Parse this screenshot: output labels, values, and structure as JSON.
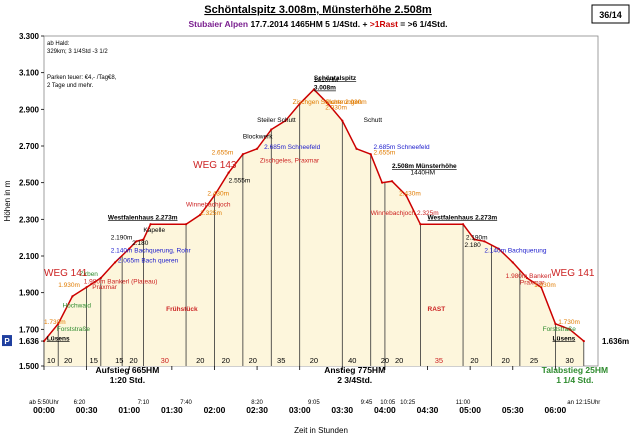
{
  "header": {
    "title": "Schöntalspitz 3.008m, Münsterhöhe 2.508m",
    "subtitle_region": "Stubaier Alpen",
    "subtitle_date": "17.7.2014",
    "subtitle_hm": "1465HM",
    "subtitle_time": "5 1/4Std. +",
    "subtitle_rast": ">1Rast",
    "subtitle_total": "= >6 1/4Std.",
    "page_badge": "36/14"
  },
  "colors": {
    "fill": "#fdf6dc",
    "line": "#cc0000",
    "green": "#2e8b2e",
    "orange": "#e07b00",
    "blue": "#1a1acc",
    "purple": "#7a1f8f",
    "red_text": "#cc2222"
  },
  "notes": {
    "line1": "ab Hald:",
    "line2": "329km; 3 1/4Std -3 1/2",
    "line3": "Parken teuer: €4,- /Tag€8,",
    "line4": "2 Tage und mehr."
  },
  "p_marker": "P",
  "chart_data": {
    "type": "area",
    "title": "Schöntalspitz 3.008m, Münsterhöhe 2.508m",
    "xlabel": "Zeit in Stunden",
    "ylabel": "Höhen in m",
    "ylim": [
      1500,
      3300
    ],
    "xlim": [
      0,
      390
    ],
    "y_ticks": [
      {
        "v": 1500,
        "label": "1.500"
      },
      {
        "v": 1636,
        "label": "1.636"
      },
      {
        "v": 1700,
        "label": "1.700"
      },
      {
        "v": 1900,
        "label": "1.900"
      },
      {
        "v": 2100,
        "label": "2.100"
      },
      {
        "v": 2300,
        "label": "2.300"
      },
      {
        "v": 2500,
        "label": "2.500"
      },
      {
        "v": 2700,
        "label": "2.700"
      },
      {
        "v": 2900,
        "label": "2.900"
      },
      {
        "v": 3100,
        "label": "3.100"
      },
      {
        "v": 3300,
        "label": "3.300"
      }
    ],
    "x_ticks": [
      {
        "t": 0,
        "label": "00:00"
      },
      {
        "t": 30,
        "label": "00:30"
      },
      {
        "t": 60,
        "label": "01:00"
      },
      {
        "t": 90,
        "label": "01:30"
      },
      {
        "t": 120,
        "label": "02:00"
      },
      {
        "t": 150,
        "label": "02:30"
      },
      {
        "t": 180,
        "label": "03:00"
      },
      {
        "t": 210,
        "label": "03:30"
      },
      {
        "t": 240,
        "label": "04:00"
      },
      {
        "t": 270,
        "label": "04:30"
      },
      {
        "t": 300,
        "label": "05:00"
      },
      {
        "t": 330,
        "label": "05:30"
      },
      {
        "t": 360,
        "label": "06:00"
      }
    ],
    "clock_labels": [
      {
        "t": 0,
        "label": "ab 5:50Uhr"
      },
      {
        "t": 25,
        "label": "6:20"
      },
      {
        "t": 70,
        "label": "7:10"
      },
      {
        "t": 100,
        "label": "7:40"
      },
      {
        "t": 150,
        "label": "8:20"
      },
      {
        "t": 190,
        "label": "9:05"
      },
      {
        "t": 227,
        "label": "9:45"
      },
      {
        "t": 242,
        "label": "10:05"
      },
      {
        "t": 256,
        "label": "10:25"
      },
      {
        "t": 295,
        "label": "11:00"
      },
      {
        "t": 380,
        "label": "an 12:15Uhr"
      }
    ],
    "segment_minutes": [
      {
        "t": 5,
        "label": "10"
      },
      {
        "t": 17,
        "label": "20"
      },
      {
        "t": 35,
        "label": "15"
      },
      {
        "t": 53,
        "label": "15"
      },
      {
        "t": 63,
        "label": "20"
      },
      {
        "t": 85,
        "label": "30"
      },
      {
        "t": 110,
        "label": "20"
      },
      {
        "t": 128,
        "label": "20"
      },
      {
        "t": 147,
        "label": "20"
      },
      {
        "t": 167,
        "label": "35"
      },
      {
        "t": 190,
        "label": "20"
      },
      {
        "t": 217,
        "label": "40"
      },
      {
        "t": 240,
        "label": "20"
      },
      {
        "t": 250,
        "label": "20"
      },
      {
        "t": 278,
        "label": "35"
      },
      {
        "t": 303,
        "label": "20"
      },
      {
        "t": 325,
        "label": "20"
      },
      {
        "t": 345,
        "label": "25"
      },
      {
        "t": 370,
        "label": "30"
      }
    ],
    "dividers": [
      0,
      10,
      30,
      40,
      55,
      70,
      100,
      120,
      140,
      160,
      180,
      210,
      230,
      240,
      265,
      295,
      315,
      335,
      360,
      380
    ],
    "series": [
      {
        "name": "Höhenprofil",
        "points": [
          [
            0,
            1636
          ],
          [
            10,
            1730
          ],
          [
            20,
            1880
          ],
          [
            30,
            1930
          ],
          [
            40,
            1980
          ],
          [
            50,
            2065
          ],
          [
            60,
            2140
          ],
          [
            65,
            2180
          ],
          [
            70,
            2190
          ],
          [
            75,
            2273
          ],
          [
            100,
            2273
          ],
          [
            110,
            2325
          ],
          [
            120,
            2430
          ],
          [
            130,
            2555
          ],
          [
            140,
            2655
          ],
          [
            150,
            2685
          ],
          [
            160,
            2790
          ],
          [
            170,
            2838
          ],
          [
            180,
            2930
          ],
          [
            190,
            3008
          ],
          [
            200,
            2930
          ],
          [
            210,
            2838
          ],
          [
            220,
            2685
          ],
          [
            230,
            2655
          ],
          [
            238,
            2500
          ],
          [
            245,
            2508
          ],
          [
            255,
            2430
          ],
          [
            265,
            2273
          ],
          [
            295,
            2273
          ],
          [
            303,
            2190
          ],
          [
            310,
            2180
          ],
          [
            320,
            2140
          ],
          [
            330,
            2065
          ],
          [
            340,
            1980
          ],
          [
            350,
            1930
          ],
          [
            360,
            1730
          ],
          [
            370,
            1700
          ],
          [
            380,
            1636
          ]
        ]
      }
    ],
    "annotations": [
      {
        "t": 190,
        "v": 3060,
        "text": "Schöntalspitz",
        "color": "#000000",
        "bold": true,
        "underline": true
      },
      {
        "t": 190,
        "v": 3008,
        "text": "3.008m",
        "color": "#000000",
        "bold": true,
        "underline": true
      },
      {
        "t": 190,
        "v": 3048,
        "text": "1410HM",
        "color": "#000000"
      },
      {
        "t": 175,
        "v": 2930,
        "text": "Zischgen Scharte 2.930m",
        "color": "#e07b00"
      },
      {
        "t": 198,
        "v": 2930,
        "text": "Sicherungen",
        "color": "#e07b00"
      },
      {
        "t": 198,
        "v": 2900,
        "text": "2.930m",
        "color": "#e07b00"
      },
      {
        "t": 150,
        "v": 2830,
        "text": "Steiler Schutt",
        "color": "#000000"
      },
      {
        "t": 225,
        "v": 2830,
        "text": "Schutt",
        "color": "#000000"
      },
      {
        "t": 140,
        "v": 2740,
        "text": "Blockwerk",
        "color": "#000000"
      },
      {
        "t": 118,
        "v": 2655,
        "text": "2.655m",
        "color": "#e07b00"
      },
      {
        "t": 155,
        "v": 2685,
        "text": "2.685m Schneefeld",
        "color": "#1a1acc"
      },
      {
        "t": 152,
        "v": 2610,
        "text": "Zischgeles, Praxmar",
        "color": "#cc2222"
      },
      {
        "t": 232,
        "v": 2685,
        "text": "2.685m Schneefeld",
        "color": "#1a1acc"
      },
      {
        "t": 232,
        "v": 2655,
        "text": "2.655m",
        "color": "#e07b00"
      },
      {
        "t": 245,
        "v": 2580,
        "text": "2.508m Münsterhöhe",
        "color": "#000000",
        "bold": true,
        "underline": true
      },
      {
        "t": 258,
        "v": 2545,
        "text": "1440HM",
        "color": "#000000"
      },
      {
        "t": 250,
        "v": 2430,
        "text": "2.430m",
        "color": "#e07b00"
      },
      {
        "t": 115,
        "v": 2430,
        "text": "2.430m",
        "color": "#e07b00"
      },
      {
        "t": 130,
        "v": 2500,
        "text": "2.555m",
        "color": "#000000"
      },
      {
        "t": 105,
        "v": 2580,
        "text": "WEG 143",
        "color": "#cc2222",
        "size": 10
      },
      {
        "t": 110,
        "v": 2325,
        "text": "2.325m",
        "color": "#e07b00"
      },
      {
        "t": 100,
        "v": 2370,
        "text": "Winnebachjoch",
        "color": "#cc2222"
      },
      {
        "t": 230,
        "v": 2325,
        "text": "Winnebachjoch 2.325m",
        "color": "#cc2222"
      },
      {
        "t": 45,
        "v": 2300,
        "text": "Westfalenhaus 2.273m",
        "color": "#000000",
        "bold": true,
        "underline": true
      },
      {
        "t": 270,
        "v": 2300,
        "text": "Westfalenhaus 2.273m",
        "color": "#000000",
        "bold": true,
        "underline": true
      },
      {
        "t": 70,
        "v": 2230,
        "text": "Kapelle",
        "color": "#000000"
      },
      {
        "t": 47,
        "v": 2190,
        "text": "2.190m",
        "color": "#000000"
      },
      {
        "t": 62,
        "v": 2160,
        "text": "2.180",
        "color": "#000000"
      },
      {
        "t": 47,
        "v": 2120,
        "text": "2.140m Bachquerung, Rohr",
        "color": "#1a1acc"
      },
      {
        "t": 297,
        "v": 2190,
        "text": "2.190m",
        "color": "#000000"
      },
      {
        "t": 296,
        "v": 2150,
        "text": "2.180",
        "color": "#000000"
      },
      {
        "t": 310,
        "v": 2120,
        "text": "2.140m Bachquerung",
        "color": "#1a1acc"
      },
      {
        "t": 52,
        "v": 2065,
        "text": "2.065m Bach queren",
        "color": "#1a1acc"
      },
      {
        "t": 25,
        "v": 1990,
        "text": "Zirben",
        "color": "#2e8b2e"
      },
      {
        "t": 28,
        "v": 1950,
        "text": "1.980m Bankerl (Plateau)",
        "color": "#cc2222"
      },
      {
        "t": 34,
        "v": 1920,
        "text": "Praxmar",
        "color": "#cc2222"
      },
      {
        "t": 10,
        "v": 1930,
        "text": "1.930m",
        "color": "#e07b00"
      },
      {
        "t": 0,
        "v": 1990,
        "text": "WEG 141",
        "color": "#cc2222",
        "size": 10
      },
      {
        "t": 13,
        "v": 1820,
        "text": "Hochwald",
        "color": "#2e8b2e"
      },
      {
        "t": 0,
        "v": 1730,
        "text": "1.730m",
        "color": "#e07b00"
      },
      {
        "t": 9,
        "v": 1690,
        "text": "Forststraße",
        "color": "#2e8b2e"
      },
      {
        "t": 2,
        "v": 1640,
        "text": "Lüsens",
        "color": "#000000",
        "bold": true,
        "underline": true
      },
      {
        "t": 325,
        "v": 1980,
        "text": "1.980m Bankerl",
        "color": "#cc2222"
      },
      {
        "t": 335,
        "v": 1945,
        "text": "Praxmar",
        "color": "#cc2222"
      },
      {
        "t": 345,
        "v": 1930,
        "text": "1.930m",
        "color": "#e07b00"
      },
      {
        "t": 357,
        "v": 1990,
        "text": "WEG 141",
        "color": "#cc2222",
        "size": 10
      },
      {
        "t": 362,
        "v": 1730,
        "text": "1.730m",
        "color": "#e07b00"
      },
      {
        "t": 351,
        "v": 1690,
        "text": "Forststraße",
        "color": "#2e8b2e"
      },
      {
        "t": 358,
        "v": 1640,
        "text": "Lüsens",
        "color": "#000000",
        "bold": true,
        "underline": true
      },
      {
        "t": 86,
        "v": 1800,
        "text": "Frühstück",
        "color": "#cc2222",
        "bold": true
      },
      {
        "t": 270,
        "v": 1800,
        "text": "RAST",
        "color": "#cc2222",
        "bold": true
      }
    ],
    "right_label": "1.636m",
    "summaries": [
      {
        "t": 20,
        "v": 1560,
        "line1": "Aufstieg 665HM",
        "line2": "1:20 Std.",
        "color": "#000000"
      },
      {
        "t": 180,
        "v": 1560,
        "line1": "Anstieg 775HM",
        "line2": "2 3/4Std.",
        "color": "#000000"
      },
      {
        "t": 335,
        "v": 1560,
        "line1": "Talabstieg 25HM",
        "line2": "1 1/4 Std.",
        "color": "#2e8b2e"
      }
    ]
  }
}
